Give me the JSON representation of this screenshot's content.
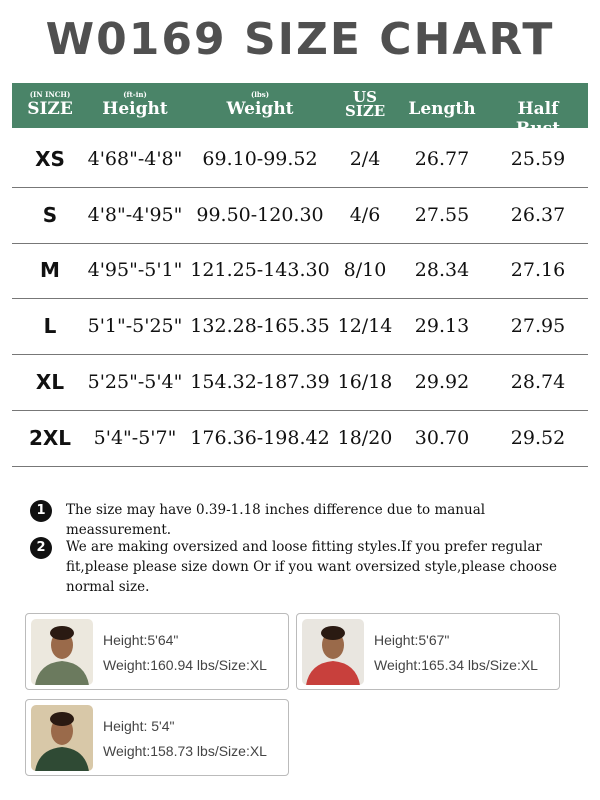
{
  "title": "W0169 SIZE CHART",
  "colors": {
    "header_bg": "#4a8468",
    "title": "#505050"
  },
  "table": {
    "headers": [
      {
        "sub": "(IN INCH)",
        "main": "SIZE"
      },
      {
        "sub": "(ft-in)",
        "main": "Height"
      },
      {
        "sub": "(lbs)",
        "main": "Weight"
      },
      {
        "sub": "",
        "main": "US SIZE"
      },
      {
        "sub": "",
        "main": "Length"
      },
      {
        "sub": "",
        "main": "Half  Bust"
      }
    ],
    "rows": [
      [
        "XS",
        "4'68\"-4'8\"",
        "69.10-99.52",
        "2/4",
        "26.77",
        "25.59"
      ],
      [
        "S",
        "4'8\"-4'95\"",
        "99.50-120.30",
        "4/6",
        "27.55",
        "26.37"
      ],
      [
        "M",
        "4'95\"-5'1\"",
        "121.25-143.30",
        "8/10",
        "28.34",
        "27.16"
      ],
      [
        "L",
        "5'1\"-5'25\"",
        "132.28-165.35",
        "12/14",
        "29.13",
        "27.95"
      ],
      [
        "XL",
        "5'25\"-5'4\"",
        "154.32-187.39",
        "16/18",
        "29.92",
        "28.74"
      ],
      [
        "2XL",
        "5'4\"-5'7\"",
        "176.36-198.42",
        "18/20",
        "30.70",
        "29.52"
      ]
    ]
  },
  "notes": [
    {
      "num": "1",
      "text": "The size may have 0.39-1.18 inches difference due to manual meassurement."
    },
    {
      "num": "2",
      "text": "We are making oversized and loose fitting styles.If you prefer regular fit,please please size down Or if you want oversized style,please choose normal size."
    }
  ],
  "models": [
    {
      "height": "Height:5'64\"",
      "weight": "Weight:160.94 lbs/Size:XL",
      "top_color": "#6b7a5e",
      "bg": "#ece8de"
    },
    {
      "height": "Height:5'67\"",
      "weight": "Weight:165.34 lbs/Size:XL",
      "top_color": "#c8403c",
      "bg": "#e9e6e0"
    },
    {
      "height": "Height: 5'4\"",
      "weight": "Weight:158.73 lbs/Size:XL",
      "top_color": "#2f4a34",
      "bg": "#d8c8a8"
    }
  ]
}
